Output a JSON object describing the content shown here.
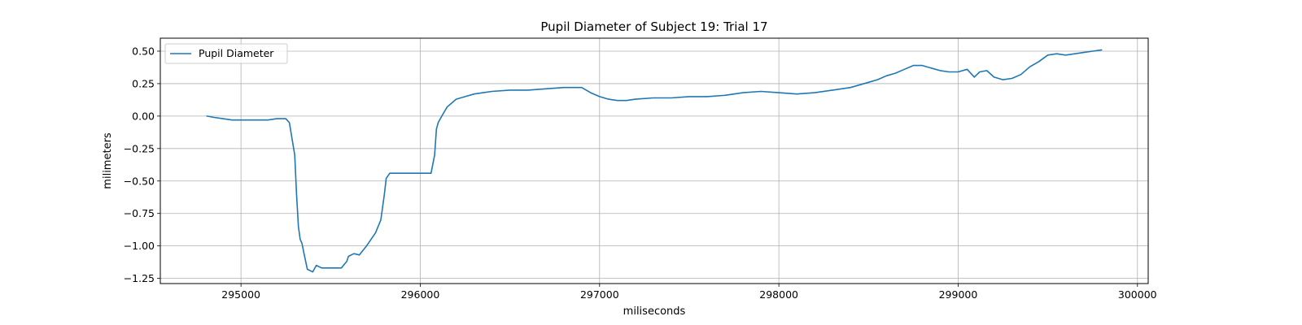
{
  "chart_data": {
    "type": "line",
    "title": "Pupil Diameter of Subject 19: Trial 17",
    "xlabel": "miliseconds",
    "ylabel": "milimeters",
    "xlim": [
      294550,
      300060
    ],
    "ylim": [
      -1.29,
      0.6
    ],
    "xticks": [
      295000,
      296000,
      297000,
      298000,
      299000,
      300000
    ],
    "yticks": [
      0.5,
      0.25,
      0.0,
      -0.25,
      -0.5,
      -0.75,
      -1.0,
      -1.25
    ],
    "xtick_labels": [
      "295000",
      "296000",
      "297000",
      "298000",
      "299000",
      "300000"
    ],
    "ytick_labels": [
      "0.50",
      "0.25",
      "0.00",
      "−0.25",
      "−0.50",
      "−0.75",
      "−1.00",
      "−1.25"
    ],
    "grid": true,
    "legend_position": "top-left",
    "colors": {
      "series": "#1f77b4",
      "grid": "#b0b0b0",
      "axes": "#000000"
    },
    "series": [
      {
        "name": "Pupil Diameter",
        "x": [
          294810,
          294850,
          294900,
          294950,
          295000,
          295050,
          295100,
          295150,
          295200,
          295250,
          295270,
          295300,
          295310,
          295320,
          295330,
          295340,
          295350,
          295370,
          295400,
          295420,
          295450,
          295480,
          295510,
          295560,
          295590,
          295600,
          295630,
          295660,
          295700,
          295750,
          295780,
          295800,
          295810,
          295830,
          295850,
          296000,
          296060,
          296080,
          296090,
          296100,
          296120,
          296150,
          296200,
          296250,
          296300,
          296350,
          296400,
          296500,
          296600,
          296700,
          296800,
          296900,
          296950,
          297000,
          297050,
          297100,
          297150,
          297200,
          297300,
          297400,
          297500,
          297600,
          297700,
          297800,
          297900,
          298000,
          298100,
          298200,
          298300,
          298400,
          298500,
          298550,
          298600,
          298650,
          298700,
          298750,
          298800,
          298850,
          298900,
          298950,
          299000,
          299050,
          299090,
          299120,
          299160,
          299200,
          299250,
          299300,
          299350,
          299400,
          299450,
          299500,
          299550,
          299600,
          299650,
          299700,
          299750,
          299800
        ],
        "y": [
          0.0,
          -0.01,
          -0.02,
          -0.03,
          -0.03,
          -0.03,
          -0.03,
          -0.03,
          -0.02,
          -0.02,
          -0.05,
          -0.3,
          -0.6,
          -0.85,
          -0.95,
          -0.98,
          -1.05,
          -1.18,
          -1.2,
          -1.15,
          -1.17,
          -1.17,
          -1.17,
          -1.17,
          -1.12,
          -1.08,
          -1.06,
          -1.07,
          -1.0,
          -0.9,
          -0.8,
          -0.6,
          -0.48,
          -0.44,
          -0.44,
          -0.44,
          -0.44,
          -0.3,
          -0.1,
          -0.05,
          0.0,
          0.07,
          0.13,
          0.15,
          0.17,
          0.18,
          0.19,
          0.2,
          0.2,
          0.21,
          0.22,
          0.22,
          0.18,
          0.15,
          0.13,
          0.12,
          0.12,
          0.13,
          0.14,
          0.14,
          0.15,
          0.15,
          0.16,
          0.18,
          0.19,
          0.18,
          0.17,
          0.18,
          0.2,
          0.22,
          0.26,
          0.28,
          0.31,
          0.33,
          0.36,
          0.39,
          0.39,
          0.37,
          0.35,
          0.34,
          0.34,
          0.36,
          0.3,
          0.34,
          0.35,
          0.3,
          0.28,
          0.29,
          0.32,
          0.38,
          0.42,
          0.47,
          0.48,
          0.47,
          0.48,
          0.49,
          0.5,
          0.51
        ]
      }
    ]
  }
}
